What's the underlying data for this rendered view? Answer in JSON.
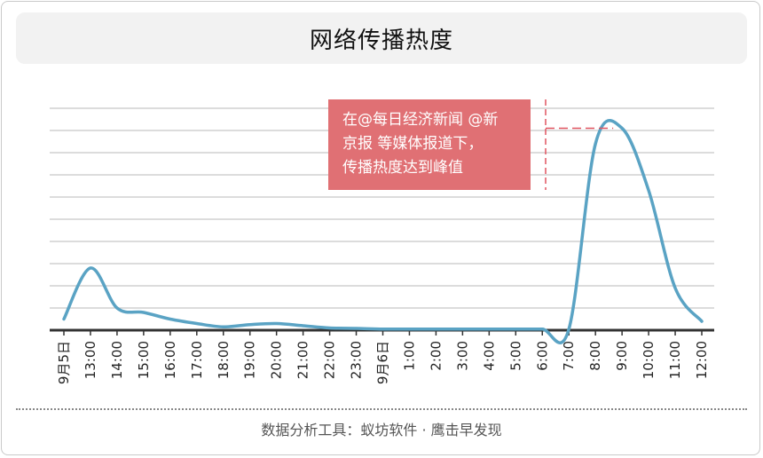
{
  "chart_data": {
    "type": "line",
    "title": "网络传播热度",
    "categories": [
      "9月5日",
      "13:00",
      "14:00",
      "15:00",
      "16:00",
      "17:00",
      "18:00",
      "19:00",
      "20:00",
      "21:00",
      "22:00",
      "23:00",
      "9月6日",
      "1:00",
      "2:00",
      "3:00",
      "4:00",
      "5:00",
      "6:00",
      "7:00",
      "8:00",
      "9:00",
      "10:00",
      "11:00",
      "12:00"
    ],
    "series": [
      {
        "values": [
          0.5,
          2.8,
          1.0,
          0.8,
          0.5,
          0.3,
          0.15,
          0.25,
          0.3,
          0.2,
          0.1,
          0.08,
          0.05,
          0.05,
          0.05,
          0.05,
          0.05,
          0.05,
          0.05,
          0.05,
          8.4,
          9.1,
          6.3,
          1.9,
          0.4
        ],
        "color": "#5aa3c4"
      }
    ],
    "ylim": [
      0,
      10
    ],
    "grid": true,
    "yticks_shown": false,
    "annotation": {
      "text_lines": [
        "在@每日经济新闻  @新",
        "京报  等媒体报道下，",
        "传播热度达到峰值"
      ],
      "box_color": "#e07074",
      "text_color": "#ffffff",
      "marker_color": "#e05560"
    }
  },
  "footer": {
    "text": "数据分析工具：蚁坊软件 · 鹰击早发现"
  }
}
